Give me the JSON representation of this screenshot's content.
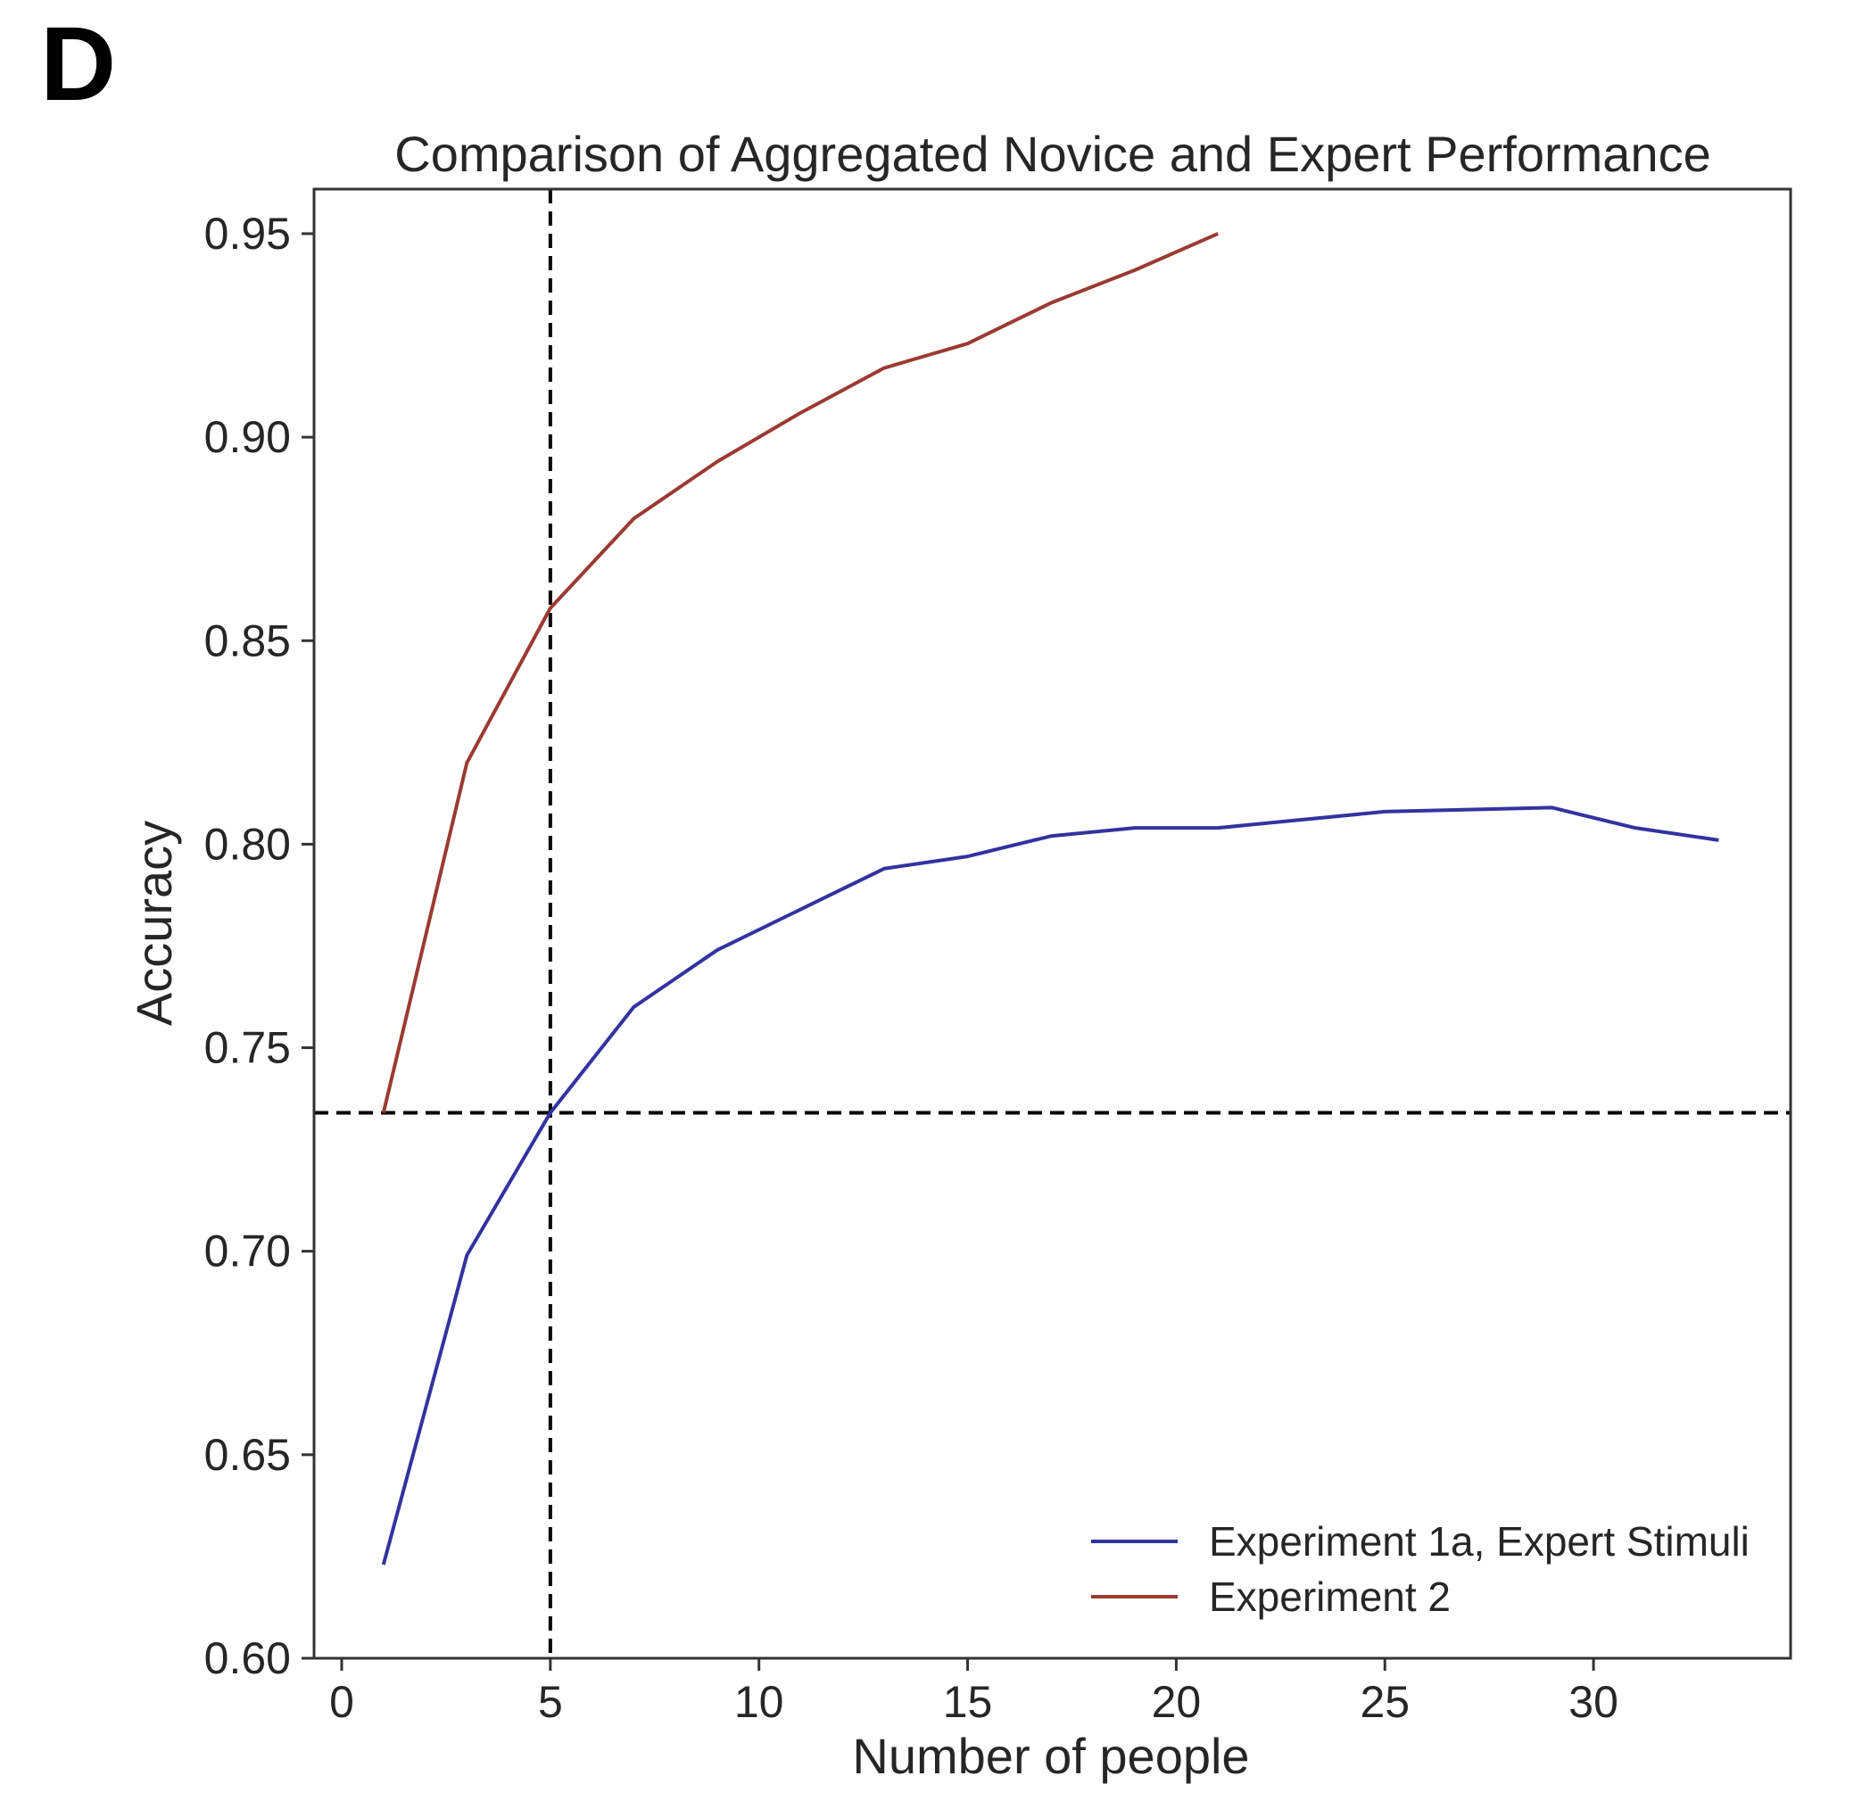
{
  "panel_label": "D",
  "chart_data": {
    "type": "line",
    "title": "Comparison of Aggregated Novice and Expert Performance",
    "xlabel": "Number of people",
    "ylabel": "Accuracy",
    "xlim": [
      -0.7,
      34.5
    ],
    "ylim": [
      0.6,
      0.96
    ],
    "xticks": [
      0,
      5,
      10,
      15,
      20,
      25,
      30
    ],
    "xtick_labels": [
      "0",
      "5",
      "10",
      "15",
      "20",
      "25",
      "30"
    ],
    "yticks": [
      0.6,
      0.65,
      0.7,
      0.75,
      0.8,
      0.85,
      0.9,
      0.95
    ],
    "ytick_labels": [
      "0.60",
      "0.65",
      "0.70",
      "0.75",
      "0.80",
      "0.85",
      "0.90",
      "0.95"
    ],
    "grid": false,
    "legend_position": "bottom-right",
    "series": [
      {
        "name": "Experiment 1a, Expert Stimuli",
        "color": "#3232a0",
        "x": [
          1,
          3,
          5,
          7,
          9,
          11,
          13,
          15,
          17,
          19,
          21,
          23,
          25,
          27,
          29,
          31,
          33
        ],
        "y": [
          0.623,
          0.699,
          0.734,
          0.76,
          0.774,
          0.784,
          0.794,
          0.797,
          0.802,
          0.804,
          0.804,
          0.806,
          0.808,
          0.8085,
          0.809,
          0.804,
          0.801
        ]
      },
      {
        "name": "Experiment 2",
        "color": "#9b3a32",
        "x": [
          1,
          3,
          5,
          7,
          9,
          11,
          13,
          15,
          17,
          19,
          21
        ],
        "y": [
          0.734,
          0.82,
          0.858,
          0.88,
          0.894,
          0.906,
          0.917,
          0.923,
          0.933,
          0.941,
          0.95
        ]
      }
    ],
    "reference_lines": {
      "vertical_x": 5,
      "horizontal_y": 0.734,
      "style": "dashed",
      "color": "#000000"
    }
  }
}
